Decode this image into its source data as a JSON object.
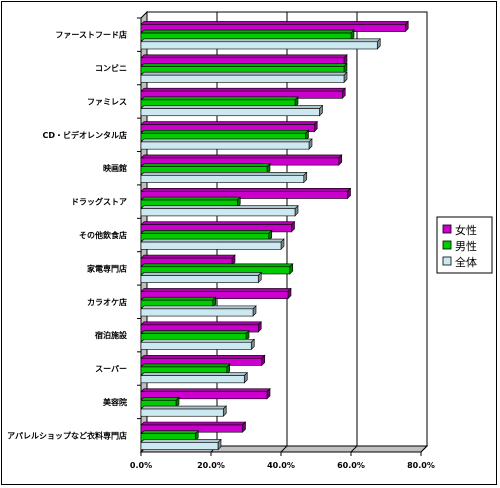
{
  "chart_data": {
    "type": "bar",
    "orientation": "horizontal",
    "style": "3d",
    "categories": [
      "ファーストフード店",
      "コンビニ",
      "ファミレス",
      "CD・ビデオレンタル店",
      "映画館",
      "ドラッグストア",
      "その他飲食店",
      "家電専門店",
      "カラオケ店",
      "宿泊施設",
      "スーパー",
      "美容院",
      "アパレルショップなど衣料専門店"
    ],
    "series": [
      {
        "name": "女性",
        "color": "#cc00cc",
        "values": [
          75.5,
          58.0,
          57.5,
          49.5,
          56.5,
          59.0,
          43.0,
          26.0,
          42.0,
          33.5,
          34.5,
          36.0,
          29.0
        ]
      },
      {
        "name": "男性",
        "color": "#00cc00",
        "values": [
          60.0,
          58.0,
          44.0,
          47.0,
          36.0,
          27.5,
          36.5,
          42.5,
          20.5,
          30.0,
          24.5,
          10.0,
          15.5
        ]
      },
      {
        "name": "全体",
        "color": "#cce8f0",
        "values": [
          67.5,
          58.0,
          51.0,
          48.0,
          46.5,
          44.0,
          40.0,
          33.5,
          32.0,
          31.5,
          29.5,
          23.5,
          22.0
        ]
      }
    ],
    "x_ticks": [
      "0.0%",
      "20.0%",
      "40.0%",
      "60.0%",
      "80.0%"
    ],
    "xlim": [
      0,
      80
    ],
    "grid": true,
    "legend_position": "right"
  }
}
